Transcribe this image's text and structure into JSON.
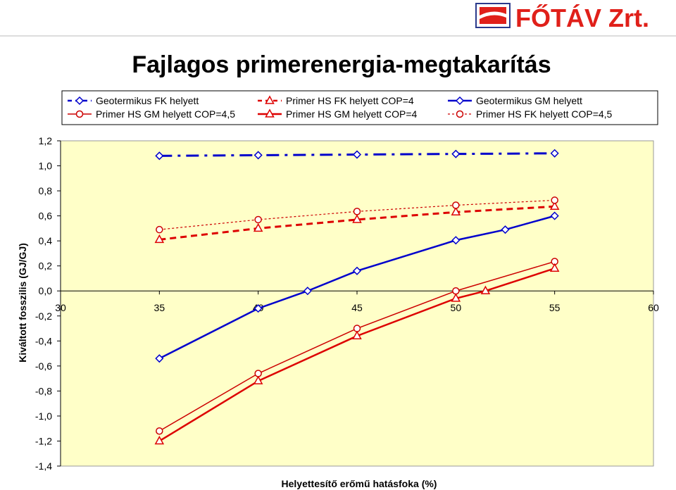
{
  "brand": {
    "name": "FŐTÁV Zrt.",
    "colors": {
      "red": "#e0201a",
      "navy": "#2b3a8c"
    }
  },
  "chart_data": {
    "type": "line",
    "title": "Fajlagos primerenergia-megtakarítás",
    "xlabel": "Helyettesítő erőmű hatásfoka (%)",
    "ylabel": "Kiváltott fosszilis (GJ/GJ)",
    "xlim": [
      30,
      60
    ],
    "ylim": [
      -1.4,
      1.2
    ],
    "x_ticks": [
      "30",
      "35",
      "40",
      "45",
      "50",
      "55",
      "60"
    ],
    "y_ticks": [
      "1,2",
      "1,0",
      "0,8",
      "0,6",
      "0,4",
      "0,2",
      "0,0",
      "-0,2",
      "-0,4",
      "-0,6",
      "-0,8",
      "-1,0",
      "-1,2",
      "-1,4"
    ],
    "plot_background": "#ffffc8",
    "grid": false,
    "legend_position": "top",
    "series": [
      {
        "name": "Geotermikus FK helyett",
        "color": "#0000cc",
        "style": "dash-dot",
        "marker": "diamond",
        "x": [
          35,
          40,
          45,
          50,
          55
        ],
        "y": [
          1.08,
          1.085,
          1.09,
          1.095,
          1.1
        ]
      },
      {
        "name": "Primer HS FK helyett COP=4",
        "color": "#dd0000",
        "style": "dashed",
        "marker": "triangle",
        "x": [
          35,
          40,
          45,
          50,
          55
        ],
        "y": [
          0.41,
          0.5,
          0.57,
          0.63,
          0.675
        ]
      },
      {
        "name": "Geotermikus GM helyett",
        "color": "#0000cc",
        "style": "solid",
        "marker": "diamond",
        "x": [
          35,
          40,
          42.5,
          45,
          50,
          52.5,
          55
        ],
        "y": [
          -0.54,
          -0.14,
          0.0,
          0.16,
          0.405,
          0.49,
          0.6
        ]
      },
      {
        "name": "Primer HS GM helyett COP=4,5",
        "color": "#cc0000",
        "style": "solid-thin",
        "marker": "circle",
        "x": [
          35,
          40,
          45,
          50,
          55
        ],
        "y": [
          -1.12,
          -0.66,
          -0.3,
          0.0,
          0.235
        ]
      },
      {
        "name": "Primer HS GM helyett COP=4",
        "color": "#dd0000",
        "style": "solid",
        "marker": "triangle",
        "x": [
          35,
          40,
          45,
          50,
          51.5,
          55
        ],
        "y": [
          -1.2,
          -0.72,
          -0.36,
          -0.06,
          0.0,
          0.18
        ]
      },
      {
        "name": "Primer HS FK helyett COP=4,5",
        "color": "#cc0000",
        "style": "dotted",
        "marker": "circle",
        "x": [
          35,
          40,
          45,
          50,
          55
        ],
        "y": [
          0.49,
          0.57,
          0.635,
          0.685,
          0.725
        ]
      }
    ]
  }
}
